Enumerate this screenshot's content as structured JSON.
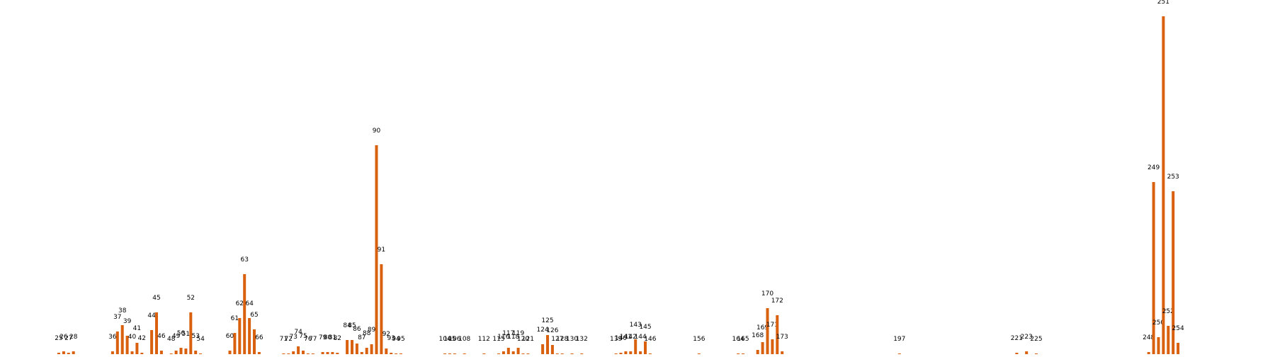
{
  "colors": {
    "bar": "#d9600f",
    "label": "#000000",
    "background": "#ffffff"
  },
  "chart_data": {
    "type": "bar",
    "title": "",
    "xlabel": "",
    "ylabel": "",
    "grid": false,
    "legend": "none",
    "x_range": [
      20,
      260
    ],
    "ylim": [
      0,
      500
    ],
    "bars": [
      {
        "label": "25",
        "x": 25,
        "value": 2
      },
      {
        "label": "26",
        "x": 26,
        "value": 4
      },
      {
        "label": "27",
        "x": 27,
        "value": 2
      },
      {
        "label": "28",
        "x": 28,
        "value": 4
      },
      {
        "label": "36",
        "x": 36,
        "value": 4
      },
      {
        "label": "37",
        "x": 37,
        "value": 32
      },
      {
        "label": "38",
        "x": 38,
        "value": 41
      },
      {
        "label": "39",
        "x": 39,
        "value": 26
      },
      {
        "label": "40",
        "x": 40,
        "value": 4
      },
      {
        "label": "41",
        "x": 41,
        "value": 16
      },
      {
        "label": "42",
        "x": 42,
        "value": 2
      },
      {
        "label": "44",
        "x": 44,
        "value": 34
      },
      {
        "label": "45",
        "x": 45,
        "value": 59
      },
      {
        "label": "46",
        "x": 46,
        "value": 5
      },
      {
        "label": "48",
        "x": 48,
        "value": 1
      },
      {
        "label": "49",
        "x": 49,
        "value": 5
      },
      {
        "label": "50",
        "x": 50,
        "value": 9
      },
      {
        "label": "51",
        "x": 51,
        "value": 8
      },
      {
        "label": "52",
        "x": 52,
        "value": 59
      },
      {
        "label": "53",
        "x": 53,
        "value": 5
      },
      {
        "label": "54",
        "x": 54,
        "value": 1
      },
      {
        "label": "60",
        "x": 60,
        "value": 5
      },
      {
        "label": "61",
        "x": 61,
        "value": 30
      },
      {
        "label": "62",
        "x": 62,
        "value": 51
      },
      {
        "label": "63",
        "x": 63,
        "value": 113
      },
      {
        "label": "64",
        "x": 64,
        "value": 51
      },
      {
        "label": "65",
        "x": 65,
        "value": 35
      },
      {
        "label": "66",
        "x": 66,
        "value": 3
      },
      {
        "label": "71",
        "x": 71,
        "value": 1
      },
      {
        "label": "72",
        "x": 72,
        "value": 1
      },
      {
        "label": "73",
        "x": 73,
        "value": 4
      },
      {
        "label": "74",
        "x": 74,
        "value": 11
      },
      {
        "label": "75",
        "x": 75,
        "value": 5
      },
      {
        "label": "76",
        "x": 76,
        "value": 1
      },
      {
        "label": "77",
        "x": 77,
        "value": 1
      },
      {
        "label": "79",
        "x": 79,
        "value": 3
      },
      {
        "label": "80",
        "x": 80,
        "value": 3
      },
      {
        "label": "81",
        "x": 81,
        "value": 3
      },
      {
        "label": "82",
        "x": 82,
        "value": 2
      },
      {
        "label": "84",
        "x": 84,
        "value": 20
      },
      {
        "label": "85",
        "x": 85,
        "value": 20
      },
      {
        "label": "86",
        "x": 86,
        "value": 15
      },
      {
        "label": "87",
        "x": 87,
        "value": 3
      },
      {
        "label": "88",
        "x": 88,
        "value": 9
      },
      {
        "label": "89",
        "x": 89,
        "value": 14
      },
      {
        "label": "90",
        "x": 90,
        "value": 295
      },
      {
        "label": "91",
        "x": 91,
        "value": 127
      },
      {
        "label": "92",
        "x": 92,
        "value": 8
      },
      {
        "label": "93",
        "x": 93,
        "value": 2
      },
      {
        "label": "94",
        "x": 94,
        "value": 1
      },
      {
        "label": "95",
        "x": 95,
        "value": 1
      },
      {
        "label": "104",
        "x": 104,
        "value": 1
      },
      {
        "label": "105",
        "x": 105,
        "value": 1
      },
      {
        "label": "106",
        "x": 106,
        "value": 1
      },
      {
        "label": "108",
        "x": 108,
        "value": 1
      },
      {
        "label": "112",
        "x": 112,
        "value": 1
      },
      {
        "label": "115",
        "x": 115,
        "value": 1
      },
      {
        "label": "116",
        "x": 116,
        "value": 4
      },
      {
        "label": "117",
        "x": 117,
        "value": 9
      },
      {
        "label": "118",
        "x": 118,
        "value": 4
      },
      {
        "label": "119",
        "x": 119,
        "value": 9
      },
      {
        "label": "120",
        "x": 120,
        "value": 1
      },
      {
        "label": "121",
        "x": 121,
        "value": 1
      },
      {
        "label": "124",
        "x": 124,
        "value": 14
      },
      {
        "label": "125",
        "x": 125,
        "value": 27
      },
      {
        "label": "126",
        "x": 126,
        "value": 13
      },
      {
        "label": "127",
        "x": 127,
        "value": 1
      },
      {
        "label": "128",
        "x": 128,
        "value": 1
      },
      {
        "label": "130",
        "x": 130,
        "value": 1
      },
      {
        "label": "132",
        "x": 132,
        "value": 1
      },
      {
        "label": "139",
        "x": 139,
        "value": 1
      },
      {
        "label": "140",
        "x": 140,
        "value": 2
      },
      {
        "label": "141",
        "x": 141,
        "value": 4
      },
      {
        "label": "142",
        "x": 142,
        "value": 4
      },
      {
        "label": "143",
        "x": 143,
        "value": 21
      },
      {
        "label": "144",
        "x": 144,
        "value": 4
      },
      {
        "label": "145",
        "x": 145,
        "value": 18
      },
      {
        "label": "146",
        "x": 146,
        "value": 1
      },
      {
        "label": "156",
        "x": 156,
        "value": 1
      },
      {
        "label": "164",
        "x": 164,
        "value": 1
      },
      {
        "label": "165",
        "x": 165,
        "value": 1
      },
      {
        "label": "168",
        "x": 168,
        "value": 6
      },
      {
        "label": "169",
        "x": 169,
        "value": 17
      },
      {
        "label": "170",
        "x": 170,
        "value": 65
      },
      {
        "label": "171",
        "x": 171,
        "value": 21
      },
      {
        "label": "172",
        "x": 172,
        "value": 55
      },
      {
        "label": "173",
        "x": 173,
        "value": 4
      },
      {
        "label": "197",
        "x": 197,
        "value": 1
      },
      {
        "label": "221",
        "x": 221,
        "value": 2
      },
      {
        "label": "223",
        "x": 223,
        "value": 4
      },
      {
        "label": "225",
        "x": 225,
        "value": 1
      },
      {
        "label": "248",
        "x": 248,
        "value": 3
      },
      {
        "label": "249",
        "x": 249,
        "value": 243
      },
      {
        "label": "250",
        "x": 250,
        "value": 24
      },
      {
        "label": "251",
        "x": 251,
        "value": 477
      },
      {
        "label": "252",
        "x": 252,
        "value": 40
      },
      {
        "label": "253",
        "x": 253,
        "value": 230
      },
      {
        "label": "254",
        "x": 254,
        "value": 16
      }
    ]
  }
}
